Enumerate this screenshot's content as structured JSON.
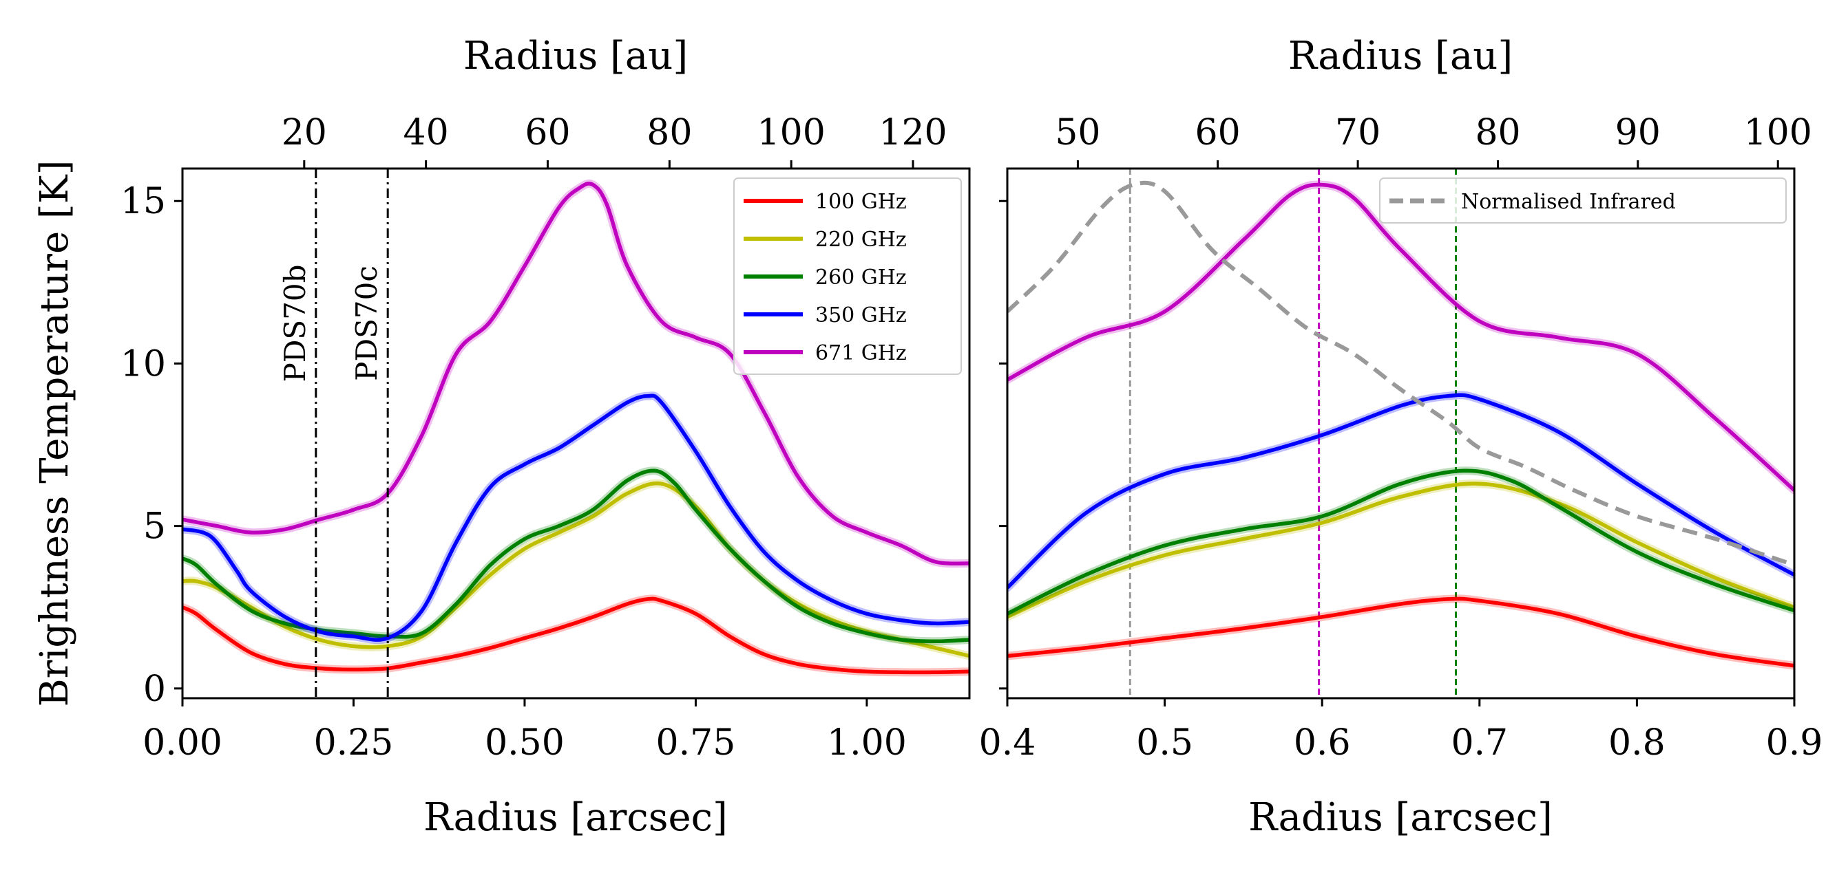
{
  "chart_data": [
    {
      "type": "line",
      "xlabel": "Radius [arcsec]",
      "ylabel": "Brightness Temperature [K]",
      "top_xlabel": "Radius [au]",
      "xlim": [
        0.0,
        1.15
      ],
      "ylim": [
        -0.3,
        16.0
      ],
      "x_ticks": [
        0.0,
        0.25,
        0.5,
        0.75,
        1.0
      ],
      "x_tick_labels": [
        "0.00",
        "0.25",
        "0.50",
        "0.75",
        "1.00"
      ],
      "y_ticks": [
        0,
        5,
        10,
        15
      ],
      "y_tick_labels": [
        "0",
        "5",
        "10",
        "15"
      ],
      "top_ticks": [
        {
          "label": "20",
          "x": 0.1779
        },
        {
          "label": "40",
          "x": 0.3558
        },
        {
          "label": "60",
          "x": 0.5337
        },
        {
          "label": "80",
          "x": 0.7117
        },
        {
          "label": "100",
          "x": 0.8896
        },
        {
          "label": "120",
          "x": 1.0675
        }
      ],
      "legend_placement": "top-right",
      "grid": false,
      "vlines": [
        {
          "label": "PDS70b",
          "x": 0.195
        },
        {
          "label": "PDS70c",
          "x": 0.3
        }
      ],
      "series": [
        {
          "name": "100 GHz",
          "color": "#ff0000",
          "x": [
            0.0,
            0.02,
            0.05,
            0.1,
            0.15,
            0.2,
            0.25,
            0.3,
            0.35,
            0.4,
            0.45,
            0.5,
            0.55,
            0.6,
            0.65,
            0.68,
            0.7,
            0.75,
            0.8,
            0.85,
            0.9,
            0.95,
            1.0,
            1.05,
            1.1,
            1.15
          ],
          "y": [
            2.5,
            2.3,
            1.8,
            1.1,
            0.75,
            0.62,
            0.58,
            0.62,
            0.8,
            1.0,
            1.25,
            1.55,
            1.85,
            2.2,
            2.6,
            2.75,
            2.7,
            2.3,
            1.6,
            1.05,
            0.75,
            0.6,
            0.52,
            0.5,
            0.5,
            0.52
          ]
        },
        {
          "name": "220 GHz",
          "color": "#bfbf00",
          "x": [
            0.0,
            0.02,
            0.05,
            0.1,
            0.15,
            0.2,
            0.25,
            0.3,
            0.35,
            0.4,
            0.45,
            0.5,
            0.55,
            0.6,
            0.65,
            0.7,
            0.75,
            0.8,
            0.85,
            0.9,
            0.95,
            1.0,
            1.05,
            1.1,
            1.15
          ],
          "y": [
            3.3,
            3.3,
            3.1,
            2.5,
            1.9,
            1.5,
            1.3,
            1.3,
            1.6,
            2.5,
            3.5,
            4.3,
            4.8,
            5.3,
            6.0,
            6.3,
            5.6,
            4.3,
            3.3,
            2.6,
            2.1,
            1.75,
            1.5,
            1.25,
            1.0
          ]
        },
        {
          "name": "260 GHz",
          "color": "#008000",
          "x": [
            0.0,
            0.02,
            0.05,
            0.1,
            0.15,
            0.2,
            0.25,
            0.3,
            0.35,
            0.4,
            0.45,
            0.5,
            0.55,
            0.6,
            0.65,
            0.69,
            0.72,
            0.75,
            0.8,
            0.85,
            0.9,
            0.95,
            1.0,
            1.05,
            1.1,
            1.15
          ],
          "y": [
            4.0,
            3.8,
            3.2,
            2.4,
            2.0,
            1.8,
            1.7,
            1.6,
            1.7,
            2.6,
            3.8,
            4.6,
            5.0,
            5.5,
            6.4,
            6.7,
            6.3,
            5.5,
            4.3,
            3.3,
            2.5,
            2.0,
            1.7,
            1.5,
            1.45,
            1.5
          ]
        },
        {
          "name": "350 GHz",
          "color": "#0000ff",
          "x": [
            0.0,
            0.03,
            0.05,
            0.08,
            0.1,
            0.15,
            0.2,
            0.25,
            0.3,
            0.35,
            0.4,
            0.45,
            0.5,
            0.55,
            0.6,
            0.65,
            0.68,
            0.7,
            0.75,
            0.8,
            0.85,
            0.9,
            0.95,
            1.0,
            1.05,
            1.1,
            1.15
          ],
          "y": [
            4.9,
            4.8,
            4.5,
            3.6,
            3.0,
            2.2,
            1.75,
            1.6,
            1.55,
            2.4,
            4.5,
            6.2,
            6.9,
            7.4,
            8.1,
            8.8,
            9.0,
            8.8,
            7.3,
            5.6,
            4.2,
            3.3,
            2.7,
            2.3,
            2.1,
            2.0,
            2.05
          ]
        },
        {
          "name": "671 GHz",
          "color": "#bf00bf",
          "x": [
            0.0,
            0.05,
            0.1,
            0.15,
            0.2,
            0.25,
            0.3,
            0.35,
            0.4,
            0.45,
            0.5,
            0.55,
            0.58,
            0.6,
            0.62,
            0.65,
            0.7,
            0.75,
            0.8,
            0.85,
            0.9,
            0.95,
            1.0,
            1.05,
            1.1,
            1.15
          ],
          "y": [
            5.2,
            5.0,
            4.8,
            4.9,
            5.2,
            5.5,
            6.0,
            7.8,
            10.3,
            11.3,
            13.0,
            14.8,
            15.4,
            15.5,
            14.9,
            13.0,
            11.3,
            10.8,
            10.3,
            8.5,
            6.5,
            5.3,
            4.8,
            4.4,
            3.9,
            3.85
          ]
        }
      ]
    },
    {
      "type": "line",
      "xlabel": "Radius [arcsec]",
      "ylabel": "",
      "top_xlabel": "Radius [au]",
      "xlim": [
        0.4,
        0.9
      ],
      "ylim": [
        -0.3,
        16.0
      ],
      "x_ticks": [
        0.4,
        0.5,
        0.6,
        0.7,
        0.8,
        0.9
      ],
      "x_tick_labels": [
        "0.4",
        "0.5",
        "0.6",
        "0.7",
        "0.8",
        "0.9"
      ],
      "y_ticks": [
        0,
        5,
        10,
        15
      ],
      "y_tick_labels": [
        "",
        "",
        "",
        ""
      ],
      "top_ticks": [
        {
          "label": "50",
          "x": 0.4448
        },
        {
          "label": "60",
          "x": 0.5337
        },
        {
          "label": "70",
          "x": 0.6227
        },
        {
          "label": "80",
          "x": 0.7117
        },
        {
          "label": "90",
          "x": 0.8006
        },
        {
          "label": "100",
          "x": 0.8896
        }
      ],
      "legend_placement": "top-right",
      "grid": false,
      "vlines": [
        {
          "color": "#999999",
          "x": 0.478
        },
        {
          "color": "#bf00bf",
          "x": 0.598
        },
        {
          "color": "#008000",
          "x": 0.685
        }
      ],
      "series": [
        {
          "name": "",
          "color": "#ff0000",
          "x": [
            0.4,
            0.45,
            0.5,
            0.55,
            0.6,
            0.65,
            0.68,
            0.7,
            0.75,
            0.8,
            0.85,
            0.9
          ],
          "y": [
            1.0,
            1.25,
            1.55,
            1.85,
            2.2,
            2.6,
            2.75,
            2.7,
            2.3,
            1.6,
            1.05,
            0.7
          ]
        },
        {
          "name": "",
          "color": "#bfbf00",
          "x": [
            0.4,
            0.45,
            0.5,
            0.55,
            0.6,
            0.65,
            0.7,
            0.75,
            0.8,
            0.85,
            0.9
          ],
          "y": [
            2.2,
            3.3,
            4.1,
            4.6,
            5.1,
            5.9,
            6.3,
            5.7,
            4.5,
            3.4,
            2.5
          ]
        },
        {
          "name": "",
          "color": "#008000",
          "x": [
            0.4,
            0.45,
            0.5,
            0.55,
            0.6,
            0.65,
            0.69,
            0.72,
            0.75,
            0.8,
            0.85,
            0.9
          ],
          "y": [
            2.3,
            3.5,
            4.4,
            4.9,
            5.3,
            6.3,
            6.7,
            6.4,
            5.6,
            4.2,
            3.2,
            2.4
          ]
        },
        {
          "name": "",
          "color": "#0000ff",
          "x": [
            0.4,
            0.45,
            0.5,
            0.55,
            0.6,
            0.65,
            0.68,
            0.7,
            0.75,
            0.8,
            0.85,
            0.9
          ],
          "y": [
            3.1,
            5.4,
            6.6,
            7.1,
            7.8,
            8.7,
            9.0,
            8.9,
            7.9,
            6.3,
            4.8,
            3.5
          ]
        },
        {
          "name": "",
          "color": "#bf00bf",
          "x": [
            0.4,
            0.45,
            0.5,
            0.55,
            0.58,
            0.6,
            0.62,
            0.65,
            0.7,
            0.75,
            0.8,
            0.85,
            0.9
          ],
          "y": [
            9.5,
            10.8,
            11.6,
            13.8,
            15.2,
            15.5,
            15.1,
            13.5,
            11.3,
            10.8,
            10.3,
            8.3,
            6.1
          ]
        },
        {
          "name": "Normalised Infrared",
          "color": "#999999",
          "dashed": true,
          "x": [
            0.4,
            0.43,
            0.46,
            0.48,
            0.5,
            0.53,
            0.56,
            0.59,
            0.62,
            0.65,
            0.68,
            0.7,
            0.73,
            0.76,
            0.8,
            0.85,
            0.9
          ],
          "y": [
            11.6,
            13.0,
            14.8,
            15.5,
            15.3,
            13.5,
            12.3,
            11.1,
            10.3,
            9.2,
            8.2,
            7.4,
            6.8,
            6.1,
            5.3,
            4.6,
            3.8
          ]
        }
      ]
    }
  ]
}
